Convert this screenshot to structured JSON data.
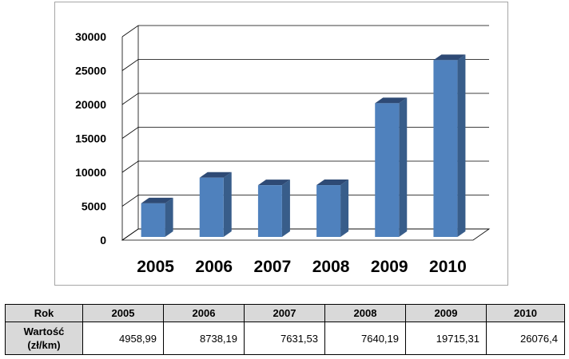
{
  "chart_data": {
    "type": "bar",
    "categories": [
      "2005",
      "2006",
      "2007",
      "2008",
      "2009",
      "2010"
    ],
    "values": [
      4958.99,
      8738.19,
      7631.53,
      7640.19,
      19715.31,
      26076.4
    ],
    "yticks": [
      "0",
      "5000",
      "10000",
      "15000",
      "20000",
      "25000",
      "30000"
    ],
    "ylim": [
      0,
      30000
    ],
    "grid": true,
    "three_d": true,
    "colors": {
      "bar_front": "#4f81bd",
      "bar_side": "#385d8a",
      "bar_top": "#2e4a75",
      "grid": "#000000"
    }
  },
  "table": {
    "header_label": "Rok",
    "row_label": "Wartość\n(zł/km)",
    "years": [
      "2005",
      "2006",
      "2007",
      "2008",
      "2009",
      "2010"
    ],
    "values": [
      "4958,99",
      "8738,19",
      "7631,53",
      "7640,19",
      "19715,31",
      "26076,4"
    ]
  }
}
